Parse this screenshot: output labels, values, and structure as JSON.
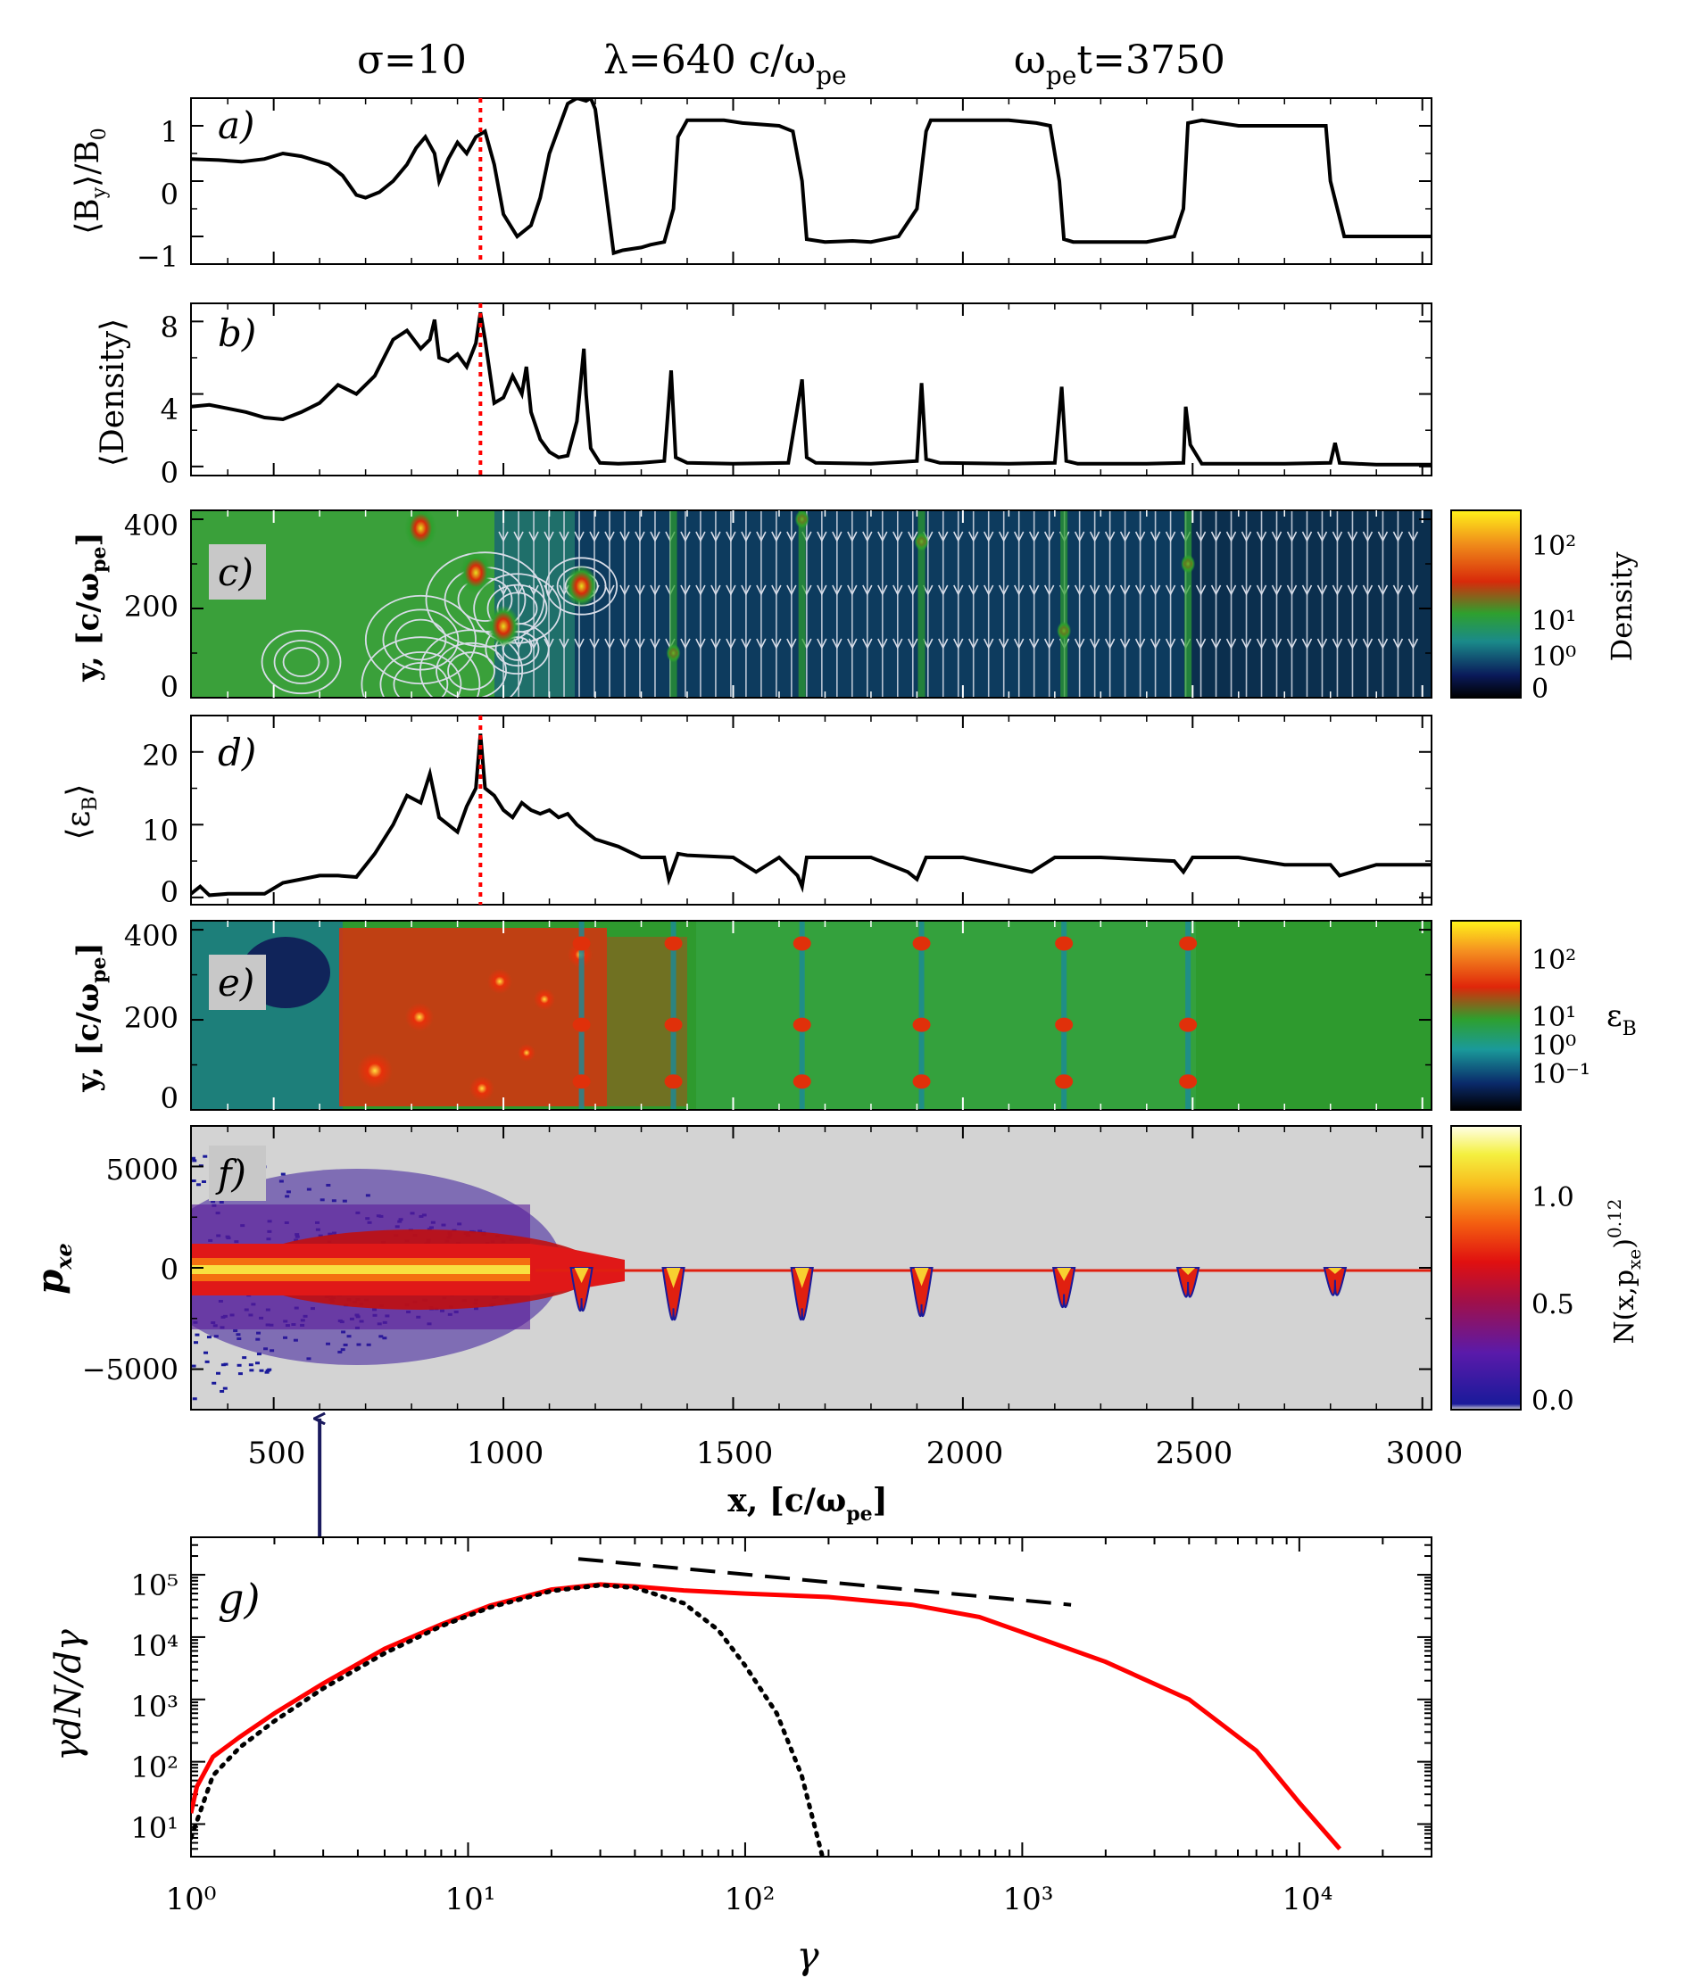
{
  "header": {
    "sigma": "σ=10",
    "lambda": "λ=640  c/ω",
    "lambda_sub": "pe",
    "time_prefix": "ω",
    "time_sub": "pe",
    "time_suffix": "t=3750"
  },
  "colors": {
    "line": "#000000",
    "spectrum": "#ff0000",
    "marker": "#ff0000",
    "arrow": "#1a1a5e",
    "panel_bg_f": "#d3d3d3",
    "field_green": "#2e9a2e",
    "field_navy": "#0d3b5e"
  },
  "panels": {
    "a": {
      "label": "a)",
      "ylabel": "⟨B_y⟩/B_0",
      "ylabel_main": "⟨B",
      "ylabel_sub": "y",
      "ylabel_tail": "⟩/B",
      "ylabel_sub2": "0",
      "yticks": [
        "1",
        "0",
        "−1"
      ]
    },
    "b": {
      "label": "b)",
      "ylabel": "⟨Density⟩",
      "yticks": [
        "8",
        "4",
        "0"
      ]
    },
    "c": {
      "label": "c)",
      "ylabel": "y, [c/ω_pe]",
      "ylabel_main": "y, [c/ω",
      "ylabel_sub": "pe",
      "ylabel_tail": "]",
      "yticks": [
        "400",
        "200",
        "0"
      ],
      "colorbar": {
        "title": "Density",
        "labels": [
          "10²",
          "10¹",
          "10⁰",
          "0"
        ]
      }
    },
    "d": {
      "label": "d)",
      "ylabel": "⟨ε_B⟩",
      "ylabel_main": "⟨ε",
      "ylabel_sub": "B",
      "ylabel_tail": "⟩",
      "yticks": [
        "20",
        "10",
        "0"
      ]
    },
    "e": {
      "label": "e)",
      "ylabel": "y, [c/ω_pe]",
      "ylabel_main": "y, [c/ω",
      "ylabel_sub": "pe",
      "ylabel_tail": "]",
      "yticks": [
        "400",
        "200",
        "0"
      ],
      "colorbar": {
        "title": "ε_B",
        "title_main": "ε",
        "title_sub": "B",
        "labels": [
          "10²",
          "10¹",
          "10⁰",
          "10⁻¹"
        ]
      }
    },
    "f": {
      "label": "f)",
      "ylabel": "p_xe",
      "ylabel_main": "p",
      "ylabel_sub": "xe",
      "yticks": [
        "5000",
        "0",
        "−5000"
      ],
      "colorbar": {
        "title": "N(x,p_xe)^0.12",
        "title_main": "N(x,p",
        "title_sub": "xe",
        "title_tail": ")",
        "title_sup": "0.12",
        "labels": [
          "1.0",
          "0.5",
          "0.0"
        ]
      }
    },
    "g": {
      "label": "g)",
      "ylabel": "γdN/dγ",
      "xlabel": "γ",
      "yticks": [
        "10⁵",
        "10⁴",
        "10³",
        "10²",
        "10¹"
      ],
      "xticks": [
        "10⁰",
        "10¹",
        "10²",
        "10³",
        "10⁴"
      ]
    }
  },
  "shared_x": {
    "xlabel": "x, [c/ω_pe]",
    "xlabel_main": "x, [c/ω",
    "xlabel_sub": "pe",
    "xlabel_tail": "]",
    "xticks": [
      "500",
      "1000",
      "1500",
      "2000",
      "2500",
      "3000"
    ]
  },
  "chart_data": [
    {
      "id": "a",
      "type": "line",
      "title": "σ=10  λ=640 c/ω_pe  ω_pe t=3750",
      "xlabel": "x, [c/ω_pe]",
      "ylabel": "⟨B_y⟩/B_0",
      "xlim": [
        320,
        3020
      ],
      "ylim": [
        -1.5,
        1.5
      ],
      "x": [
        320,
        380,
        430,
        480,
        520,
        560,
        620,
        650,
        680,
        700,
        730,
        760,
        790,
        810,
        830,
        850,
        860,
        880,
        900,
        920,
        940,
        960,
        980,
        1000,
        1030,
        1060,
        1080,
        1100,
        1140,
        1160,
        1180,
        1190,
        1200,
        1240,
        1260,
        1300,
        1320,
        1350,
        1370,
        1380,
        1400,
        1440,
        1480,
        1520,
        1600,
        1630,
        1650,
        1660,
        1700,
        1760,
        1800,
        1860,
        1900,
        1920,
        1930,
        1980,
        2020,
        2100,
        2160,
        2190,
        2210,
        2220,
        2240,
        2300,
        2400,
        2460,
        2480,
        2490,
        2520,
        2560,
        2600,
        2700,
        2790,
        2800,
        2830,
        2900,
        3000,
        3020
      ],
      "values": [
        0.4,
        0.38,
        0.35,
        0.4,
        0.5,
        0.45,
        0.3,
        0.1,
        -0.25,
        -0.3,
        -0.2,
        0.0,
        0.3,
        0.6,
        0.8,
        0.5,
        0.0,
        0.4,
        0.7,
        0.5,
        0.8,
        0.9,
        0.3,
        -0.6,
        -1.0,
        -0.8,
        -0.3,
        0.5,
        1.4,
        1.5,
        1.45,
        1.5,
        1.3,
        -1.3,
        -1.25,
        -1.2,
        -1.15,
        -1.1,
        -0.5,
        0.8,
        1.1,
        1.1,
        1.1,
        1.05,
        1.0,
        0.9,
        0.0,
        -1.05,
        -1.1,
        -1.08,
        -1.1,
        -1.0,
        -0.5,
        0.9,
        1.1,
        1.1,
        1.1,
        1.1,
        1.05,
        1.0,
        0.0,
        -1.05,
        -1.1,
        -1.1,
        -1.1,
        -1.0,
        -0.5,
        1.05,
        1.1,
        1.05,
        1.0,
        1.0,
        1.0,
        0.0,
        -1.0,
        -1.0,
        -1.0,
        -1.0
      ],
      "marker_x": 950
    },
    {
      "id": "b",
      "type": "line",
      "xlabel": "x, [c/ω_pe]",
      "ylabel": "⟨Density⟩",
      "xlim": [
        320,
        3020
      ],
      "ylim": [
        -0.5,
        9
      ],
      "x": [
        320,
        360,
        400,
        440,
        480,
        520,
        560,
        600,
        640,
        680,
        720,
        760,
        790,
        820,
        840,
        850,
        860,
        880,
        900,
        920,
        940,
        950,
        960,
        980,
        1000,
        1020,
        1040,
        1050,
        1060,
        1080,
        1100,
        1120,
        1140,
        1160,
        1175,
        1180,
        1190,
        1210,
        1250,
        1300,
        1350,
        1365,
        1375,
        1400,
        1500,
        1620,
        1650,
        1660,
        1680,
        1800,
        1900,
        1910,
        1920,
        1950,
        2100,
        2200,
        2215,
        2225,
        2250,
        2400,
        2480,
        2485,
        2495,
        2520,
        2700,
        2800,
        2810,
        2820,
        2900,
        3020
      ],
      "values": [
        3.3,
        3.4,
        3.2,
        3.0,
        2.7,
        2.6,
        3.0,
        3.5,
        4.5,
        4.0,
        5.0,
        7.0,
        7.5,
        6.5,
        7.0,
        8.1,
        6.0,
        5.8,
        6.2,
        5.5,
        6.8,
        8.5,
        7.0,
        3.5,
        3.8,
        5.0,
        4.0,
        5.5,
        3.0,
        1.5,
        0.8,
        0.5,
        0.6,
        2.5,
        6.5,
        4.0,
        1.0,
        0.2,
        0.15,
        0.2,
        0.3,
        5.3,
        0.5,
        0.2,
        0.15,
        0.2,
        4.8,
        0.5,
        0.2,
        0.15,
        0.3,
        4.6,
        0.4,
        0.2,
        0.15,
        0.2,
        4.4,
        0.3,
        0.15,
        0.15,
        0.2,
        3.3,
        1.2,
        0.15,
        0.15,
        0.2,
        1.3,
        0.2,
        0.1,
        0.1
      ],
      "marker_x": 950
    },
    {
      "id": "c",
      "type": "heatmap",
      "xlabel": "x, [c/ω_pe]",
      "ylabel": "y, [c/ω_pe]",
      "xlim": [
        320,
        3020
      ],
      "ylim": [
        0,
        420
      ],
      "colorbar_label": "Density",
      "scale": "log",
      "blob_x": [
        820,
        940,
        1000,
        1170,
        1370,
        1650,
        1910,
        2220,
        2490
      ],
      "blob_y": [
        380,
        280,
        160,
        250,
        100,
        400,
        350,
        150,
        300
      ]
    },
    {
      "id": "d",
      "type": "line",
      "xlabel": "x, [c/ω_pe]",
      "ylabel": "⟨ε_B⟩",
      "xlim": [
        320,
        3020
      ],
      "ylim": [
        -1,
        25
      ],
      "x": [
        320,
        340,
        360,
        400,
        480,
        520,
        560,
        600,
        640,
        680,
        720,
        760,
        790,
        820,
        840,
        860,
        880,
        900,
        920,
        940,
        950,
        960,
        980,
        1000,
        1020,
        1040,
        1060,
        1080,
        1100,
        1120,
        1140,
        1160,
        1180,
        1200,
        1250,
        1300,
        1350,
        1360,
        1380,
        1400,
        1500,
        1550,
        1600,
        1640,
        1650,
        1660,
        1700,
        1800,
        1880,
        1900,
        1920,
        1950,
        2000,
        2150,
        2200,
        2250,
        2300,
        2460,
        2480,
        2500,
        2600,
        2700,
        2800,
        2820,
        2900,
        3020
      ],
      "values": [
        0.5,
        1.5,
        0.3,
        0.5,
        0.5,
        2.0,
        2.5,
        3.0,
        3.0,
        2.8,
        6.0,
        10.0,
        14.0,
        13.0,
        17.0,
        11.0,
        10.0,
        9.0,
        12.5,
        15.0,
        22.5,
        15.0,
        14.0,
        12.0,
        11.0,
        13.0,
        12.0,
        11.5,
        12.0,
        11.0,
        11.5,
        10.0,
        9.0,
        8.0,
        7.0,
        5.5,
        5.5,
        2.5,
        6.0,
        5.8,
        5.5,
        3.5,
        5.5,
        3.0,
        1.5,
        5.5,
        5.5,
        5.5,
        3.5,
        2.5,
        5.5,
        5.5,
        5.5,
        3.5,
        5.5,
        5.5,
        5.5,
        5.0,
        3.5,
        5.5,
        5.5,
        4.5,
        4.5,
        3.0,
        4.5,
        4.5
      ],
      "marker_x": 950
    },
    {
      "id": "e",
      "type": "heatmap",
      "xlabel": "x, [c/ω_pe]",
      "ylabel": "y, [c/ω_pe]",
      "xlim": [
        320,
        3020
      ],
      "ylim": [
        0,
        420
      ],
      "colorbar_label": "ε_B",
      "scale": "log",
      "stripe_x": [
        1170,
        1370,
        1650,
        1910,
        2220,
        2490
      ]
    },
    {
      "id": "f",
      "type": "heatmap",
      "xlabel": "x, [c/ω_pe]",
      "ylabel": "p_xe",
      "xlim": [
        320,
        3020
      ],
      "ylim": [
        -7000,
        7000
      ],
      "colorbar_label": "N(x,p_xe)^0.12",
      "core_x": [
        320,
        1060
      ],
      "dip_x": [
        1170,
        1370,
        1650,
        1910,
        2220,
        2490,
        2810
      ],
      "dip_depth": [
        -1500,
        -2000,
        -2000,
        -1800,
        -1300,
        -700,
        -600
      ]
    },
    {
      "id": "g",
      "type": "line",
      "xlabel": "γ",
      "ylabel": "γdN/dγ",
      "xscale": "log",
      "yscale": "log",
      "xlim": [
        1,
        30000
      ],
      "ylim": [
        3,
        400000
      ],
      "series": [
        {
          "name": "spectrum",
          "color": "#ff0000",
          "style": "solid",
          "x": [
            1.0,
            1.05,
            1.2,
            1.5,
            2,
            3,
            5,
            8,
            12,
            20,
            30,
            40,
            60,
            100,
            200,
            400,
            700,
            1000,
            2000,
            4000,
            7000,
            10000,
            14000
          ],
          "y": [
            15,
            40,
            120,
            250,
            600,
            1800,
            6500,
            16000,
            32000,
            58000,
            70000,
            65000,
            56000,
            50000,
            44000,
            33000,
            21000,
            12000,
            4000,
            1000,
            150,
            22,
            4
          ]
        },
        {
          "name": "maxwellian",
          "color": "#000000",
          "style": "dotted",
          "x": [
            1.0,
            1.2,
            1.5,
            2,
            3,
            5,
            8,
            12,
            20,
            30,
            40,
            60,
            80,
            100,
            130,
            160,
            190
          ],
          "y": [
            6,
            60,
            170,
            450,
            1500,
            5500,
            15000,
            30000,
            55000,
            68000,
            62000,
            35000,
            13000,
            3500,
            600,
            60,
            3
          ]
        },
        {
          "name": "power-law",
          "color": "#000000",
          "style": "dashed",
          "x": [
            25,
            1500
          ],
          "y": [
            180000,
            33000
          ]
        }
      ],
      "arrow_x_data": 600
    }
  ]
}
